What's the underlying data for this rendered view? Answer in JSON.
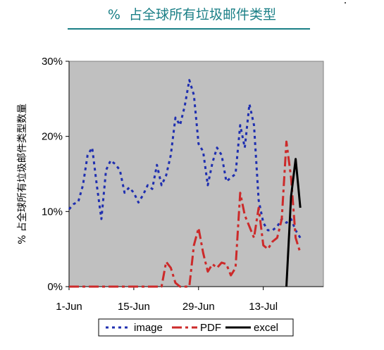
{
  "page": {
    "title": "%  占全球所有垃圾邮件类型"
  },
  "chart_data": {
    "type": "line",
    "title": "%  占全球所有垃圾邮件类型",
    "ylabel": "% 占全球所有垃圾邮件类型数量",
    "xlabel": "",
    "ylim": [
      0,
      30
    ],
    "yticks": [
      0,
      10,
      20,
      30
    ],
    "ytick_labels": [
      "0%",
      "10%",
      "20%",
      "30%"
    ],
    "x_unit": "day",
    "xlim": [
      "2024-06-01",
      "2024-07-26"
    ],
    "xticks": [
      "2024-06-01",
      "2024-06-15",
      "2024-06-29",
      "2024-07-13"
    ],
    "xtick_labels": [
      "1-Jun",
      "15-Jun",
      "29-Jun",
      "13-Jul"
    ],
    "grid": false,
    "plot_background": "#c0c0c0",
    "legend_position": "bottom",
    "series": [
      {
        "name": "image",
        "color": "#1f2fb0",
        "style": "dotted",
        "points": [
          [
            "2024-06-01",
            10.3
          ],
          [
            "2024-06-02",
            11.0
          ],
          [
            "2024-06-03",
            11.3
          ],
          [
            "2024-06-04",
            13.5
          ],
          [
            "2024-06-05",
            17.5
          ],
          [
            "2024-06-06",
            18.5
          ],
          [
            "2024-06-07",
            13.5
          ],
          [
            "2024-06-08",
            9.0
          ],
          [
            "2024-06-09",
            15.5
          ],
          [
            "2024-06-10",
            16.8
          ],
          [
            "2024-06-11",
            16.3
          ],
          [
            "2024-06-12",
            15.5
          ],
          [
            "2024-06-13",
            12.5
          ],
          [
            "2024-06-14",
            13.2
          ],
          [
            "2024-06-15",
            12.5
          ],
          [
            "2024-06-16",
            11.2
          ],
          [
            "2024-06-17",
            12.2
          ],
          [
            "2024-06-18",
            13.5
          ],
          [
            "2024-06-19",
            13.0
          ],
          [
            "2024-06-20",
            16.2
          ],
          [
            "2024-06-21",
            13.5
          ],
          [
            "2024-06-22",
            14.8
          ],
          [
            "2024-06-23",
            17.5
          ],
          [
            "2024-06-24",
            22.5
          ],
          [
            "2024-06-25",
            21.5
          ],
          [
            "2024-06-26",
            24.0
          ],
          [
            "2024-06-27",
            27.5
          ],
          [
            "2024-06-28",
            25.5
          ],
          [
            "2024-06-29",
            19.0
          ],
          [
            "2024-06-30",
            18.0
          ],
          [
            "2024-07-01",
            13.5
          ],
          [
            "2024-07-02",
            16.5
          ],
          [
            "2024-07-03",
            18.5
          ],
          [
            "2024-07-04",
            17.5
          ],
          [
            "2024-07-05",
            14.0
          ],
          [
            "2024-07-06",
            14.5
          ],
          [
            "2024-07-07",
            15.0
          ],
          [
            "2024-07-08",
            21.5
          ],
          [
            "2024-07-09",
            18.5
          ],
          [
            "2024-07-10",
            24.3
          ],
          [
            "2024-07-11",
            21.5
          ],
          [
            "2024-07-12",
            11.5
          ],
          [
            "2024-07-13",
            8.5
          ],
          [
            "2024-07-14",
            7.5
          ],
          [
            "2024-07-15",
            7.5
          ],
          [
            "2024-07-16",
            8.0
          ],
          [
            "2024-07-17",
            9.0
          ],
          [
            "2024-07-18",
            8.5
          ],
          [
            "2024-07-19",
            9.0
          ],
          [
            "2024-07-20",
            7.5
          ],
          [
            "2024-07-21",
            6.5
          ]
        ]
      },
      {
        "name": "PDF",
        "color": "#cc2a2a",
        "style": "dashdot",
        "points": [
          [
            "2024-06-01",
            0
          ],
          [
            "2024-06-19",
            0
          ],
          [
            "2024-06-21",
            0
          ],
          [
            "2024-06-22",
            3.3
          ],
          [
            "2024-06-23",
            2.5
          ],
          [
            "2024-06-24",
            0.5
          ],
          [
            "2024-06-25",
            0
          ],
          [
            "2024-06-27",
            0
          ],
          [
            "2024-06-28",
            5.5
          ],
          [
            "2024-06-29",
            7.8
          ],
          [
            "2024-06-30",
            4.5
          ],
          [
            "2024-07-01",
            2.0
          ],
          [
            "2024-07-02",
            3.0
          ],
          [
            "2024-07-03",
            2.5
          ],
          [
            "2024-07-04",
            3.2
          ],
          [
            "2024-07-05",
            3.0
          ],
          [
            "2024-07-06",
            1.5
          ],
          [
            "2024-07-07",
            2.5
          ],
          [
            "2024-07-08",
            12.5
          ],
          [
            "2024-07-09",
            9.5
          ],
          [
            "2024-07-10",
            8.0
          ],
          [
            "2024-07-11",
            6.5
          ],
          [
            "2024-07-12",
            10.5
          ],
          [
            "2024-07-13",
            5.5
          ],
          [
            "2024-07-14",
            5.0
          ],
          [
            "2024-07-15",
            6.0
          ],
          [
            "2024-07-16",
            6.5
          ],
          [
            "2024-07-17",
            9.0
          ],
          [
            "2024-07-18",
            19.3
          ],
          [
            "2024-07-19",
            14.5
          ],
          [
            "2024-07-20",
            6.5
          ],
          [
            "2024-07-21",
            4.5
          ]
        ]
      },
      {
        "name": "excel",
        "color": "#000000",
        "style": "solid",
        "points": [
          [
            "2024-07-18",
            0
          ],
          [
            "2024-07-19",
            12.0
          ],
          [
            "2024-07-20",
            17.0
          ],
          [
            "2024-07-21",
            10.5
          ]
        ]
      }
    ]
  }
}
